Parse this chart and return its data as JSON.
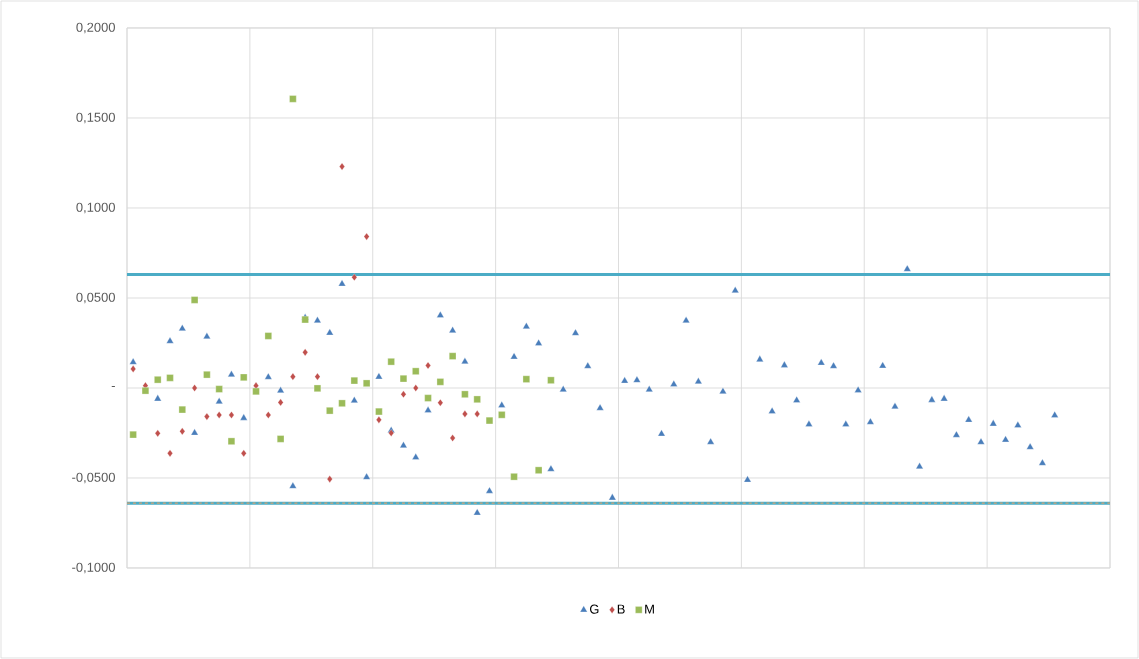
{
  "chart_data": {
    "type": "scatter",
    "categories": [
      null,
      null,
      null,
      null,
      null,
      null,
      null,
      null,
      null,
      null,
      null,
      null,
      null,
      null,
      null,
      null,
      null,
      null,
      null,
      null,
      null,
      null,
      null,
      null,
      null,
      null,
      null,
      null,
      null,
      null,
      null,
      null,
      null,
      null,
      null,
      null,
      null,
      null,
      null,
      null,
      null,
      null,
      null,
      null,
      null,
      null,
      null,
      null,
      null,
      null,
      null,
      null,
      null,
      null,
      null,
      null,
      null,
      null,
      null,
      null,
      null,
      null,
      null,
      null,
      null,
      null,
      null,
      null,
      null,
      null,
      null,
      null,
      null,
      null,
      null,
      null,
      null,
      null,
      null,
      null
    ],
    "ylim": [
      -0.1,
      0.2
    ],
    "yticks": [
      {
        "value": -0.1,
        "label": "-0,1000"
      },
      {
        "value": -0.05,
        "label": "-0,0500"
      },
      {
        "value": 0,
        "label": "-"
      },
      {
        "value": 0.05,
        "label": "0,0500"
      },
      {
        "value": 0.1,
        "label": "0,1000"
      },
      {
        "value": 0.15,
        "label": "0,1500"
      },
      {
        "value": 0.2,
        "label": "0,2000"
      }
    ],
    "tick_labels": "y",
    "grid": true,
    "legend": "bottom",
    "series": [
      {
        "name": "G",
        "color": "#4a7ebb",
        "marker": "triangle",
        "values": [
          0.0143,
          null,
          -0.006,
          0.026,
          0.033,
          -0.025,
          0.0285,
          -0.0076,
          0.0074,
          -0.0167,
          null,
          0.006,
          -0.0015,
          -0.0546,
          0.039,
          0.0374,
          0.0306,
          0.0578,
          -0.007,
          -0.0496,
          0.0062,
          -0.0237,
          -0.032,
          -0.0386,
          -0.0125,
          0.0403,
          0.0319,
          0.0146,
          -0.0694,
          -0.0573,
          -0.0097,
          0.0173,
          0.0341,
          0.0248,
          -0.0451,
          -0.0009,
          0.0304,
          0.0121,
          -0.0112,
          -0.061,
          0.0039,
          0.0043,
          -0.0009,
          -0.0255,
          0.002,
          0.0374,
          0.0035,
          -0.0301,
          -0.002,
          0.0541,
          -0.0511,
          0.0158,
          -0.013,
          0.0126,
          -0.0069,
          -0.0203,
          0.0139,
          0.0121,
          -0.0203,
          -0.0013,
          -0.019,
          0.0123,
          -0.0104,
          0.066,
          -0.0437,
          -0.0067,
          -0.006,
          -0.0262,
          -0.0178,
          -0.0301,
          -0.0199,
          -0.0288,
          -0.0208,
          -0.0329,
          -0.0418,
          -0.0152,
          null,
          null,
          null,
          null
        ]
      },
      {
        "name": "B",
        "color": "#c0504d",
        "marker": "diamond",
        "values": [
          0.0106,
          0.0013,
          -0.0252,
          -0.0363,
          -0.0241,
          0.0,
          -0.0159,
          -0.015,
          -0.015,
          -0.0363,
          0.0013,
          -0.015,
          -0.008,
          0.0063,
          0.0198,
          0.0063,
          -0.0506,
          0.123,
          0.0615,
          0.0841,
          -0.0177,
          -0.025,
          -0.0035,
          0.0,
          0.0125,
          -0.0082,
          -0.0278,
          -0.0144,
          -0.0144,
          null,
          null,
          null,
          null,
          null,
          null,
          null,
          null,
          null,
          null,
          null,
          null,
          null,
          null,
          null,
          null,
          null,
          null,
          null,
          null,
          null,
          null,
          null,
          null,
          null,
          null,
          null,
          null,
          null,
          null,
          null,
          null,
          null,
          null,
          null,
          null,
          null,
          null,
          null,
          null,
          null,
          null,
          null,
          null,
          null,
          null,
          null,
          null,
          null,
          null,
          null
        ]
      },
      {
        "name": "M",
        "color": "#9bbb59",
        "marker": "square",
        "values": [
          -0.0259,
          -0.0015,
          0.0046,
          0.0056,
          -0.012,
          0.0489,
          0.0074,
          -0.0006,
          -0.0296,
          0.0059,
          -0.0019,
          0.0289,
          -0.0283,
          0.1606,
          0.038,
          -0.0002,
          -0.0126,
          -0.0085,
          0.0041,
          0.0026,
          -0.0131,
          0.0146,
          0.0052,
          0.0093,
          -0.0056,
          0.0034,
          0.0177,
          -0.0035,
          -0.0063,
          -0.0181,
          -0.0149,
          -0.0493,
          0.0049,
          -0.0457,
          0.0043,
          null,
          null,
          null,
          null,
          null,
          null,
          null,
          null,
          null,
          null,
          null,
          null,
          null,
          null,
          null,
          null,
          null,
          null,
          null,
          null,
          null,
          null,
          null,
          null,
          null,
          null,
          null,
          null,
          null,
          null,
          null,
          null,
          null,
          null,
          null,
          null,
          null,
          null,
          null,
          null,
          null,
          null,
          null,
          null,
          null
        ]
      }
    ],
    "ref_lines": [
      {
        "axis": "y",
        "value": 0.063,
        "color": "#4bacc6",
        "line_style": "solid"
      },
      {
        "axis": "y",
        "value": -0.064,
        "color": "#4bacc6",
        "line_style": "solid"
      },
      {
        "axis": "y",
        "value": -0.064,
        "color": "#d4a373",
        "line_style": "dashed"
      }
    ]
  }
}
